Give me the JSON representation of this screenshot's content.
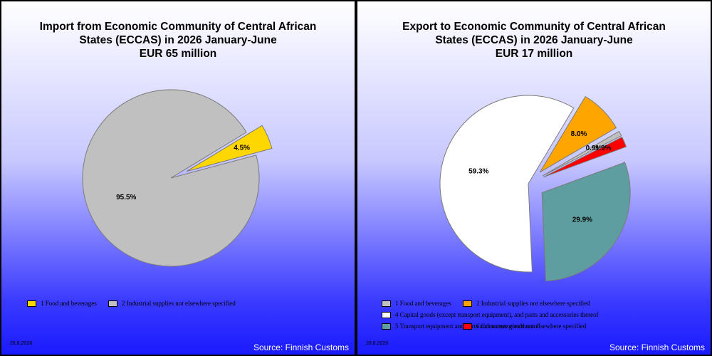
{
  "chart_data": [
    {
      "type": "pie",
      "title_lines": [
        "Import from Economic Community of Central African",
        "States (ECCAS) in 2026 January-June",
        "EUR    65 million"
      ],
      "slices": [
        {
          "name": "1 Food and beverages",
          "value": 4.5,
          "label": "4.5%",
          "color": "#ffd700",
          "exploded": true
        },
        {
          "name": "2 Industrial supplies not elsewhere specified",
          "value": 95.5,
          "label": "95.5%",
          "color": "#c0c0c0",
          "exploded": false
        }
      ],
      "legend_rows": [
        [
          0,
          1
        ]
      ],
      "date": "28.8.2026",
      "source": "Source: Finnish Customs"
    },
    {
      "type": "pie",
      "title_lines": [
        "Export to Economic Community of Central African",
        "States (ECCAS) in 2026 January-June",
        "EUR    17 million"
      ],
      "slices": [
        {
          "name": "1 Food and beverages",
          "value": 0.9,
          "label": "0.9%",
          "color": "#c0c0c0",
          "exploded": true
        },
        {
          "name": "2 Industrial supplies not elsewhere specified",
          "value": 8.0,
          "label": "8.0%",
          "color": "#ffa500",
          "exploded": true
        },
        {
          "name": "4 Capital goods (except transport equipment), and parts and accessories thereof",
          "value": 59.3,
          "label": "59.3%",
          "color": "#ffffff",
          "exploded": false
        },
        {
          "name": "5  Transport equipment and parts and accessories thereof",
          "value": 29.9,
          "label": "29.9%",
          "color": "#5f9ea0",
          "exploded": true
        },
        {
          "name": "6 Consumer goods not elsewhere specified",
          "value": 1.9,
          "label": "1.9%",
          "color": "#ff0000",
          "exploded": true
        }
      ],
      "legend_rows": [
        [
          0,
          1
        ],
        [
          2
        ],
        [
          3,
          4
        ]
      ],
      "date": "28.8.2026",
      "source": "Source: Finnish Customs"
    }
  ]
}
